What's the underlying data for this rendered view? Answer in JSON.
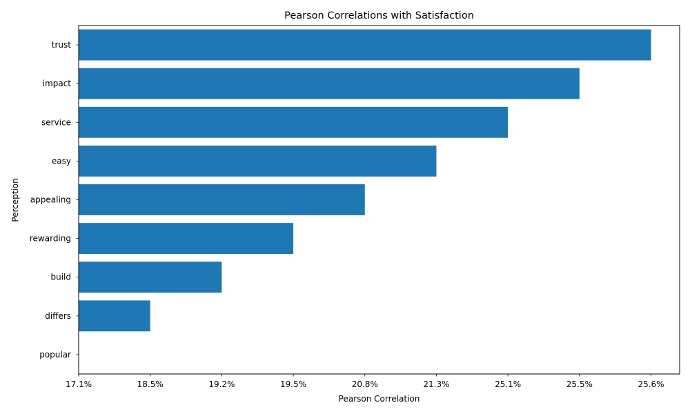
{
  "chart_data": {
    "type": "bar",
    "orientation": "horizontal",
    "title": "Pearson Correlations with Satisfaction",
    "xlabel": "Pearson Correlation",
    "ylabel": "Perception",
    "categories": [
      "trust",
      "impact",
      "service",
      "easy",
      "appealing",
      "rewarding",
      "build",
      "differs",
      "popular"
    ],
    "values": [
      8,
      7,
      6,
      5,
      4,
      3,
      2,
      1,
      0
    ],
    "xlim": [
      0,
      8.4
    ],
    "x_tick_values": [
      0,
      1,
      2,
      3,
      4,
      5,
      6,
      7,
      8
    ],
    "x_tick_labels": [
      "17.1%",
      "18.5%",
      "19.2%",
      "19.5%",
      "20.8%",
      "21.3%",
      "25.1%",
      "25.5%",
      "25.6%"
    ],
    "bar_color": "#1f77b4",
    "grid": false,
    "legend": "none"
  }
}
